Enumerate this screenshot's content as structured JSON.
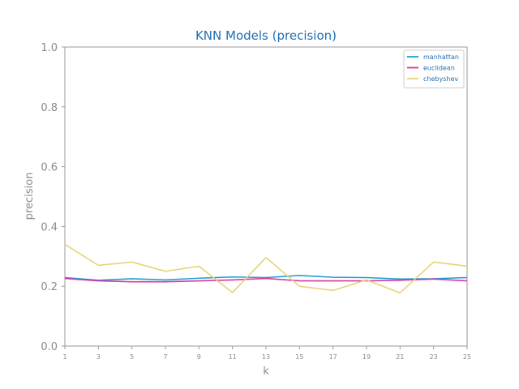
{
  "chart_data": {
    "type": "line",
    "title": "KNN Models (precision)",
    "xlabel": "k",
    "ylabel": "precision",
    "x": [
      1,
      3,
      5,
      7,
      9,
      11,
      13,
      15,
      17,
      19,
      21,
      23,
      25
    ],
    "xlim": [
      1,
      25
    ],
    "ylim": [
      0.0,
      1.0
    ],
    "yticks": [
      "0.0",
      "0.2",
      "0.4",
      "0.6",
      "0.8",
      "1.0"
    ],
    "yticks_values": [
      0.0,
      0.2,
      0.4,
      0.6,
      0.8,
      1.0
    ],
    "grid": false,
    "legend_position": "top-right",
    "series": [
      {
        "name": "manhattan",
        "color": "#1f9fd8",
        "values": [
          0.229,
          0.22,
          0.225,
          0.221,
          0.227,
          0.231,
          0.229,
          0.236,
          0.23,
          0.229,
          0.224,
          0.225,
          0.229
        ]
      },
      {
        "name": "euclidean",
        "color": "#d6399e",
        "values": [
          0.226,
          0.218,
          0.215,
          0.215,
          0.218,
          0.221,
          0.226,
          0.218,
          0.218,
          0.218,
          0.22,
          0.224,
          0.218
        ]
      },
      {
        "name": "chebyshev",
        "color": "#e8d27a",
        "values": [
          0.34,
          0.27,
          0.281,
          0.25,
          0.267,
          0.179,
          0.296,
          0.2,
          0.186,
          0.221,
          0.178,
          0.281,
          0.267
        ]
      }
    ]
  }
}
